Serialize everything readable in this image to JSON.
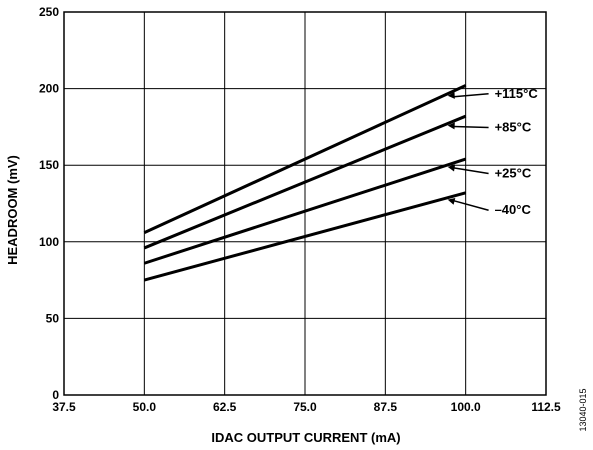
{
  "chart_data": {
    "type": "line",
    "xlabel": "IDAC OUTPUT CURRENT (mA)",
    "ylabel": "HEADROOM (mV)",
    "xlim": [
      37.5,
      112.5
    ],
    "ylim": [
      0,
      250
    ],
    "xticks": [
      37.5,
      50.0,
      62.5,
      75.0,
      87.5,
      100.0,
      112.5
    ],
    "xtick_labels": [
      "37.5",
      "50.0",
      "62.5",
      "75.0",
      "87.5",
      "100.0",
      "112.5"
    ],
    "yticks": [
      0,
      50,
      100,
      150,
      200,
      250
    ],
    "ytick_labels": [
      "0",
      "50",
      "100",
      "150",
      "200",
      "250"
    ],
    "grid": true,
    "series": [
      {
        "name": "+115°C",
        "x": [
          50.0,
          100.0
        ],
        "y": [
          106,
          202
        ],
        "label_at": [
          104.5,
          194
        ]
      },
      {
        "name": "+85°C",
        "x": [
          50.0,
          100.0
        ],
        "y": [
          96,
          182
        ],
        "label_at": [
          104.5,
          172
        ]
      },
      {
        "name": "+25°C",
        "x": [
          50.0,
          100.0
        ],
        "y": [
          86,
          154
        ],
        "label_at": [
          104.5,
          142
        ]
      },
      {
        "name": "–40°C",
        "x": [
          50.0,
          100.0
        ],
        "y": [
          75,
          132
        ],
        "label_at": [
          104.5,
          118
        ]
      }
    ]
  },
  "figure_id": "13040-015"
}
